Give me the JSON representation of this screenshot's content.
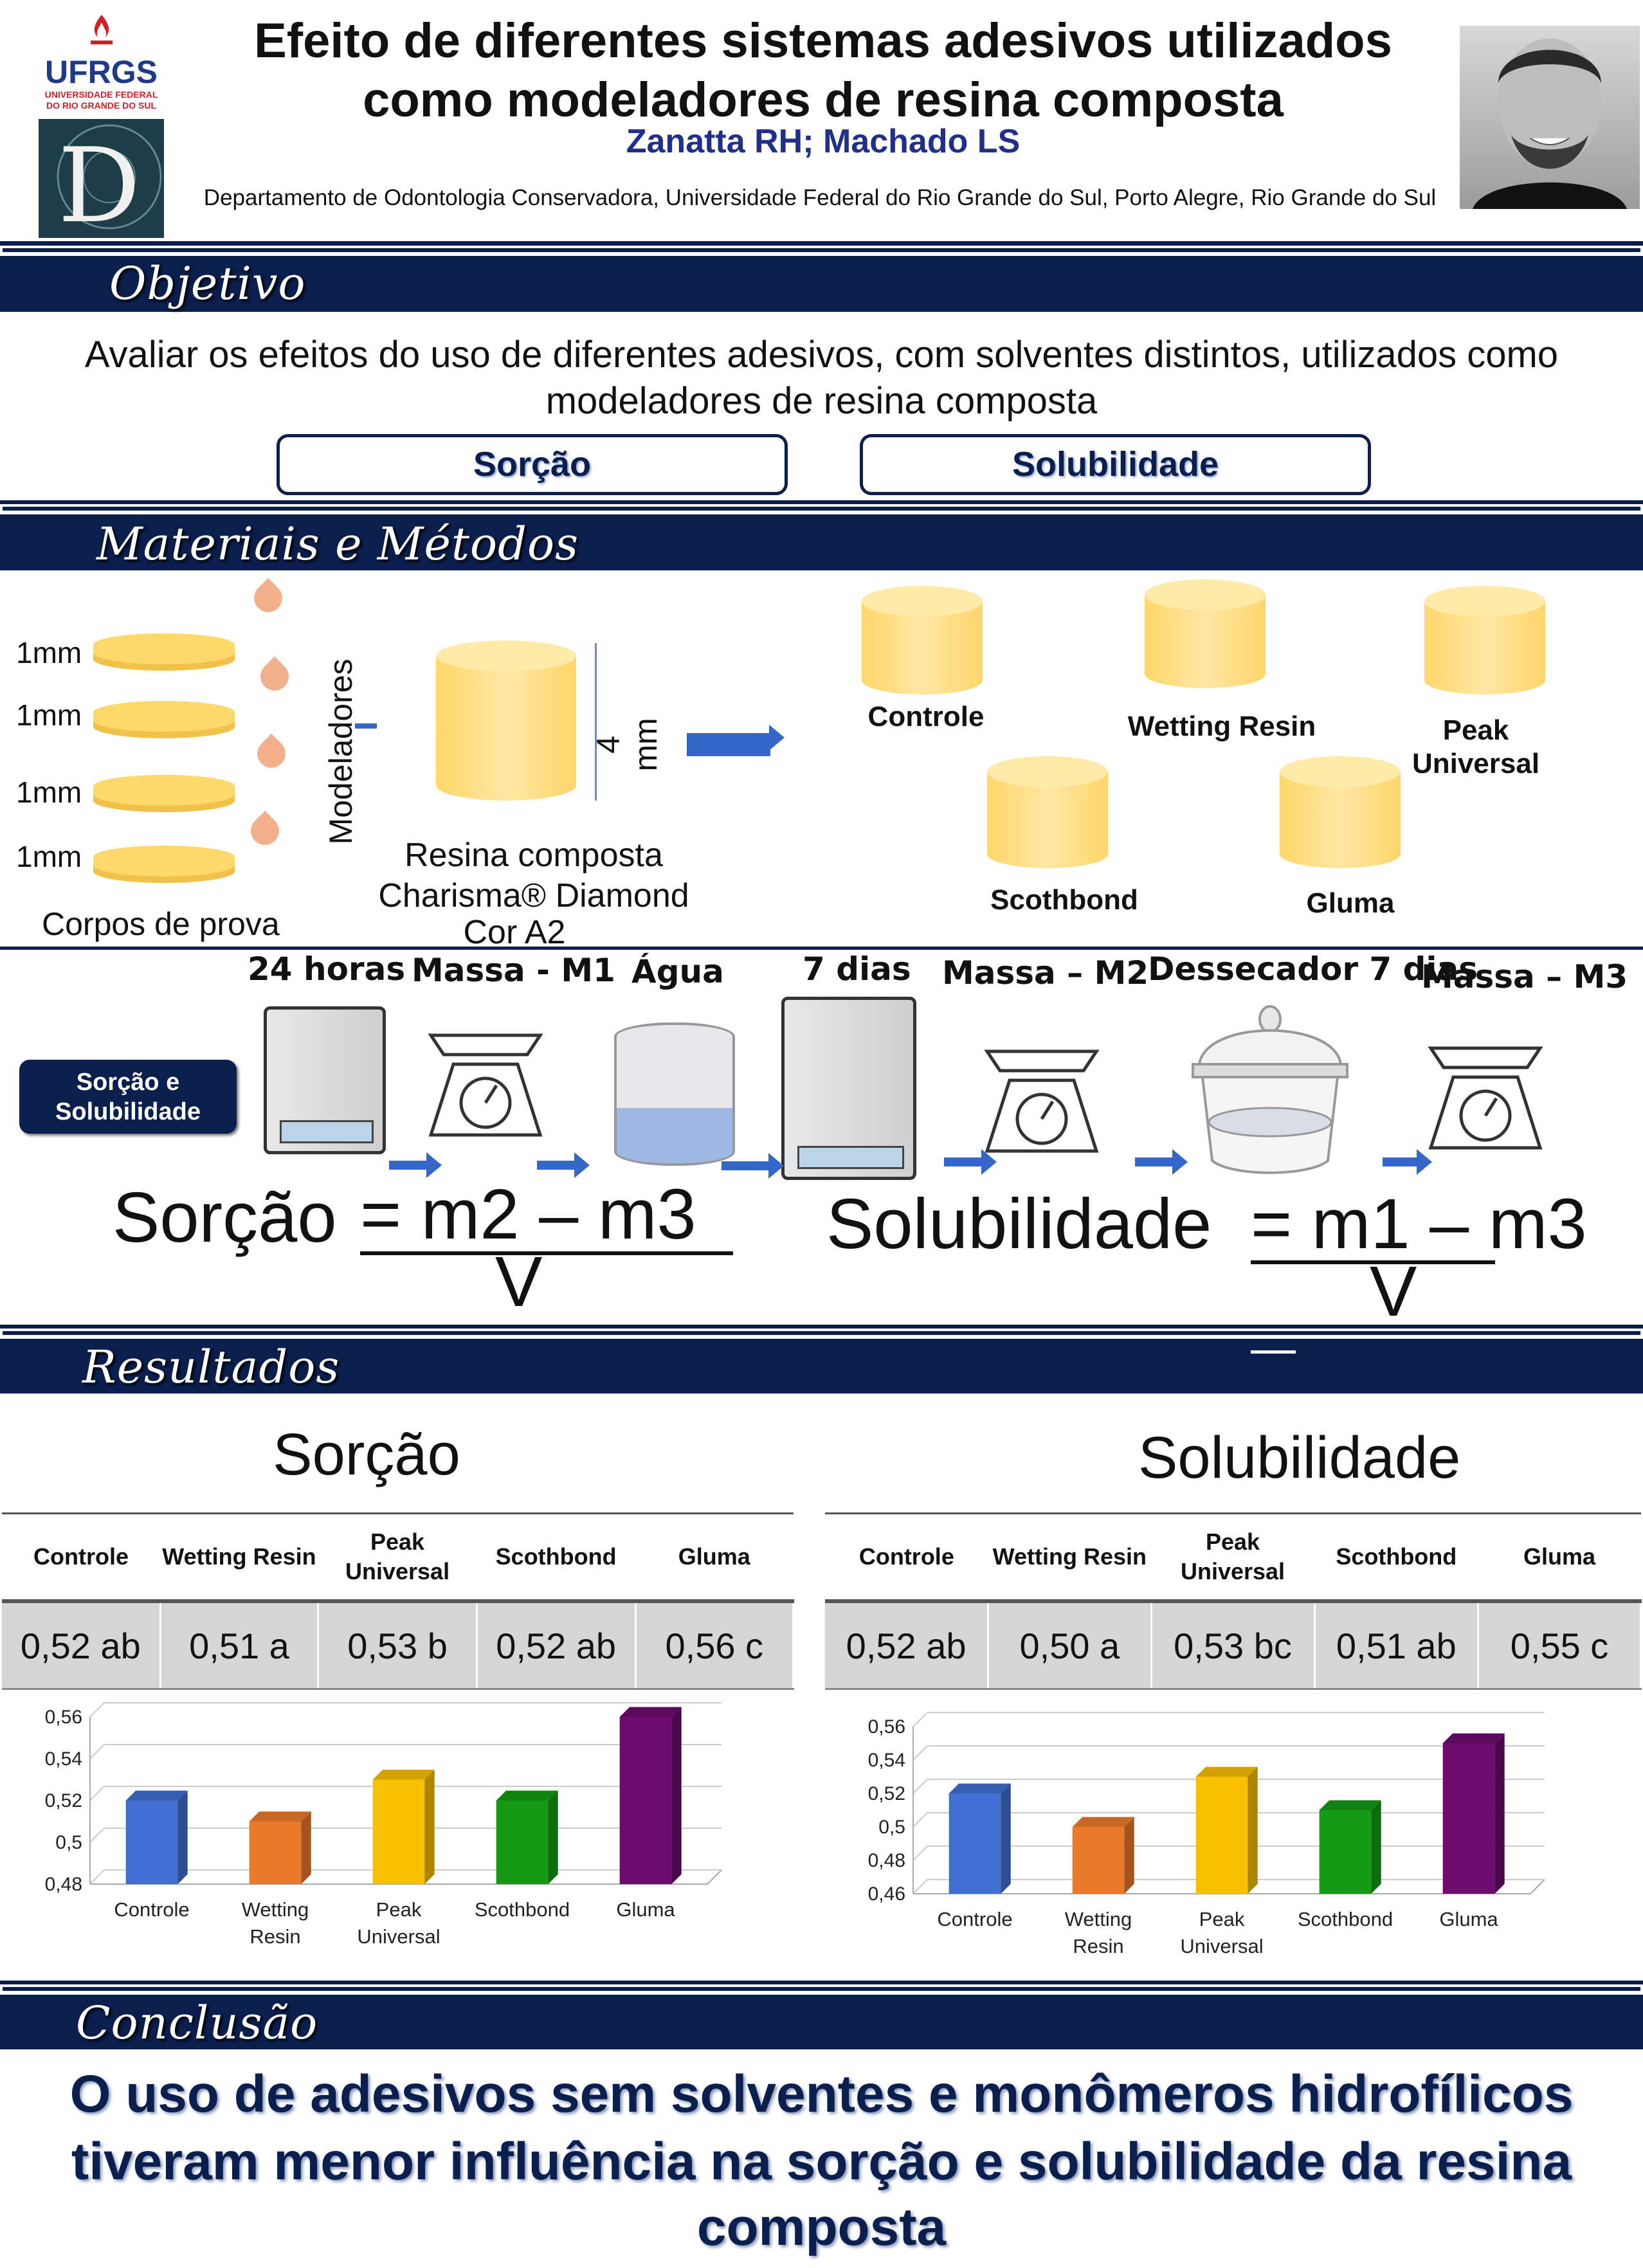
{
  "header": {
    "title_line1": "Efeito de diferentes sistemas adesivos utilizados",
    "title_line2": "como modeladores de resina composta",
    "authors": "Zanatta RH; Machado LS",
    "affiliation": "Departamento de Odontologia Conservadora, Universidade Federal do Rio Grande do Sul, Porto Alegre, Rio Grande do Sul",
    "logo_text": "UFRGS",
    "logo_subtext": "UNIVERSIDADE FEDERAL DO RIO GRANDE DO SUL",
    "logo2_letter": "D"
  },
  "objetivo": {
    "heading": "Objetivo",
    "text_line1": "Avaliar os efeitos do uso de diferentes adesivos, com solventes distintos, utilizados como",
    "text_line2": "modeladores de resina composta",
    "pill1": "Sorção",
    "pill2": "Solubilidade"
  },
  "metodos": {
    "heading": "Materiais e Métodos",
    "layers": [
      "1mm",
      "1mm",
      "1mm",
      "1mm"
    ],
    "corpos": "Corpos de prova",
    "modeladores": "Modeladores",
    "dimension": "4 mm",
    "resina_line1": "Resina composta",
    "resina_line2": "Charisma® Diamond",
    "resina_line3": "Cor A2",
    "groups": [
      "Controle",
      "Wetting Resin",
      "Peak Universal",
      "Scothbond",
      "Gluma"
    ],
    "process_label": "Sorção e Solubilidade",
    "steps": [
      "24 horas",
      "Massa - M1",
      "Água",
      "7 dias",
      "Massa – M2",
      "Dessecador 7 dias",
      "Massa – M3"
    ],
    "formula_sorcao_left": "Sorção",
    "formula_sorcao_right": "= m2 – m3",
    "formula_sorcao_den": "V",
    "formula_sol_left": "Solubilidade",
    "formula_sol_right": "= m1 – m3",
    "formula_sol_den": "V"
  },
  "resultados": {
    "heading": "Resultados",
    "sorcao_title": "Sorção",
    "solubilidade_title": "Solubilidade",
    "columns": [
      "Controle",
      "Wetting Resin",
      "Peak Universal",
      "Scothbond",
      "Gluma"
    ],
    "sorcao_values": [
      "0,52 ab",
      "0,51 a",
      "0,53 b",
      "0,52 ab",
      "0,56 c"
    ],
    "sol_values": [
      "0,52 ab",
      "0,50 a",
      "0,53 bc",
      "0,51 ab",
      "0,55 c"
    ]
  },
  "chart_data": [
    {
      "type": "bar",
      "categories": [
        "Controle",
        "Wetting Resin",
        "Peak Universal",
        "Scothbond",
        "Gluma"
      ],
      "values": [
        0.52,
        0.51,
        0.53,
        0.52,
        0.56
      ],
      "ylim": [
        0.48,
        0.56
      ],
      "yticks": [
        "0,48",
        "0,5",
        "0,52",
        "0,54",
        "0,56"
      ],
      "colors": [
        "#3f6fd0",
        "#ea7a2a",
        "#f7c000",
        "#149a14",
        "#6c0a6e"
      ],
      "grid": true
    },
    {
      "type": "bar",
      "categories": [
        "Controle",
        "Wetting Resin",
        "Peak Universal",
        "Scothbond",
        "Gluma"
      ],
      "values": [
        0.52,
        0.5,
        0.53,
        0.51,
        0.55
      ],
      "ylim": [
        0.46,
        0.56
      ],
      "yticks": [
        "0,46",
        "0,48",
        "0,5",
        "0,52",
        "0,54",
        "0,56"
      ],
      "colors": [
        "#3f6fd0",
        "#ea7a2a",
        "#f7c000",
        "#149a14",
        "#6c0a6e"
      ],
      "grid": true
    }
  ],
  "conclusao": {
    "heading": "Conclusão",
    "line1": "O uso de adesivos sem solventes e monômeros hidrofílicos",
    "line2": "tiveram menor influência na sorção e solubilidade da resina",
    "line3": "composta"
  }
}
